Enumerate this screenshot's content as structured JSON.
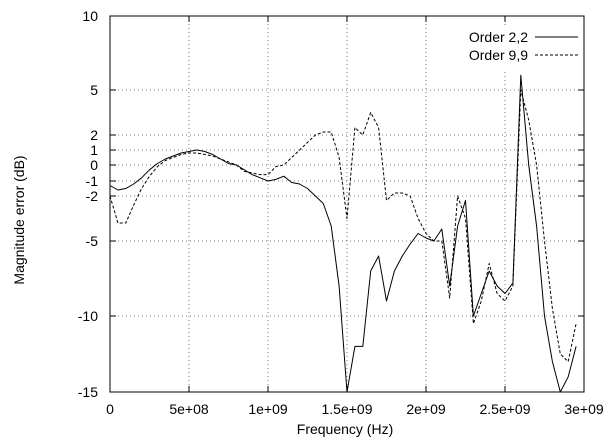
{
  "chart_data": {
    "type": "line",
    "xlabel": "Frequency (Hz)",
    "ylabel": "Magnitude error (dB)",
    "xlim": [
      0,
      3000000000
    ],
    "ylim": [
      -15,
      10
    ],
    "grid": true,
    "grid_style": "dotted",
    "legend_position": "top-right",
    "x_ticks": [
      {
        "value": 0,
        "label": "0"
      },
      {
        "value": 500000000,
        "label": "5e+08"
      },
      {
        "value": 1000000000,
        "label": "1e+09"
      },
      {
        "value": 1500000000,
        "label": "1.5e+09"
      },
      {
        "value": 2000000000,
        "label": "2e+09"
      },
      {
        "value": 2500000000,
        "label": "2.5e+09"
      },
      {
        "value": 3000000000,
        "label": "3e+09"
      }
    ],
    "y_ticks": [
      {
        "value": 10,
        "label": "10"
      },
      {
        "value": 5,
        "label": "5"
      },
      {
        "value": 2,
        "label": "2"
      },
      {
        "value": 1,
        "label": "1"
      },
      {
        "value": 0,
        "label": "0"
      },
      {
        "value": -1,
        "label": "-1"
      },
      {
        "value": -2,
        "label": "-2"
      },
      {
        "value": -5,
        "label": "-5"
      },
      {
        "value": -10,
        "label": "-10"
      },
      {
        "value": -15,
        "label": "-15"
      }
    ],
    "series": [
      {
        "name": "Order 2,2",
        "style": "solid",
        "color": "#000000",
        "x": [
          0,
          50000000,
          100000000,
          150000000,
          200000000,
          250000000,
          300000000,
          350000000,
          400000000,
          450000000,
          500000000,
          550000000,
          600000000,
          650000000,
          700000000,
          750000000,
          800000000,
          850000000,
          900000000,
          950000000,
          1000000000,
          1050000000,
          1100000000,
          1150000000,
          1200000000,
          1250000000,
          1300000000,
          1350000000,
          1400000000,
          1450000000,
          1500000000,
          1550000000,
          1600000000,
          1650000000,
          1700000000,
          1750000000,
          1800000000,
          1850000000,
          1900000000,
          1950000000,
          2000000000,
          2050000000,
          2100000000,
          2150000000,
          2200000000,
          2250000000,
          2300000000,
          2350000000,
          2400000000,
          2450000000,
          2500000000,
          2550000000,
          2600000000,
          2650000000,
          2700000000,
          2750000000,
          2800000000,
          2850000000,
          2900000000,
          2950000000
        ],
        "values": [
          -1.3,
          -1.6,
          -1.5,
          -1.2,
          -0.8,
          -0.3,
          0.1,
          0.4,
          0.6,
          0.8,
          0.9,
          1.0,
          0.9,
          0.7,
          0.4,
          0.1,
          0.0,
          -0.3,
          -0.6,
          -0.8,
          -1.0,
          -0.9,
          -0.7,
          -1.1,
          -1.2,
          -1.5,
          -2.0,
          -2.5,
          -4.0,
          -8.0,
          -15.0,
          -12.0,
          -12.0,
          -7.0,
          -6.0,
          -9.0,
          -7.0,
          -6.0,
          -5.2,
          -4.5,
          -4.8,
          -5.0,
          -4.2,
          -8.0,
          -4.0,
          -2.3,
          -10.0,
          -8.5,
          -7.0,
          -8.0,
          -8.5,
          -7.8,
          6.0,
          0.0,
          -4.0,
          -10.0,
          -13.0,
          -15.0,
          -14.0,
          -12.0
        ]
      },
      {
        "name": "Order 9,9",
        "style": "dashed",
        "color": "#000000",
        "x": [
          0,
          50000000,
          100000000,
          150000000,
          200000000,
          250000000,
          300000000,
          350000000,
          400000000,
          450000000,
          500000000,
          550000000,
          600000000,
          650000000,
          700000000,
          750000000,
          800000000,
          850000000,
          900000000,
          950000000,
          1000000000,
          1050000000,
          1100000000,
          1150000000,
          1200000000,
          1250000000,
          1300000000,
          1350000000,
          1400000000,
          1450000000,
          1500000000,
          1550000000,
          1600000000,
          1650000000,
          1700000000,
          1750000000,
          1800000000,
          1850000000,
          1900000000,
          1950000000,
          2000000000,
          2050000000,
          2100000000,
          2150000000,
          2200000000,
          2250000000,
          2300000000,
          2350000000,
          2400000000,
          2450000000,
          2500000000,
          2550000000,
          2600000000,
          2650000000,
          2700000000,
          2750000000,
          2800000000,
          2850000000,
          2900000000,
          2950000000
        ],
        "values": [
          -2.0,
          -3.8,
          -3.8,
          -2.6,
          -1.5,
          -0.7,
          -0.1,
          0.3,
          0.5,
          0.7,
          0.8,
          0.8,
          0.7,
          0.6,
          0.4,
          0.2,
          0.0,
          -0.4,
          -0.5,
          -0.6,
          -0.6,
          -0.1,
          0.0,
          0.5,
          1.0,
          1.5,
          2.0,
          2.2,
          2.2,
          0.5,
          -3.5,
          2.5,
          2.0,
          3.5,
          2.5,
          -2.3,
          -1.8,
          -1.8,
          -2.0,
          -3.5,
          -4.5,
          -5.0,
          -5.0,
          -8.8,
          -2.0,
          -3.5,
          -10.5,
          -9.0,
          -6.5,
          -8.5,
          -9.0,
          -8.0,
          5.0,
          3.0,
          0.0,
          -5.0,
          -9.5,
          -12.5,
          -13.0,
          -10.5
        ]
      }
    ]
  }
}
